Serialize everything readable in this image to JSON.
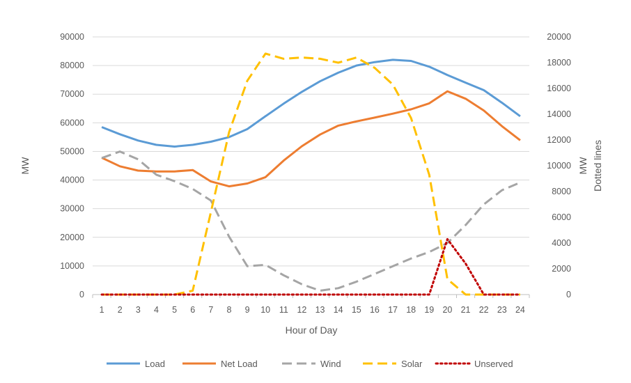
{
  "chart_data": {
    "type": "line",
    "xlabel": "Hour of Day",
    "ylabel_left": "MW",
    "ylabel_right_line1": "MW",
    "ylabel_right_line2": "Dotted lines",
    "x": [
      "1",
      "2",
      "3",
      "4",
      "5",
      "6",
      "7",
      "8",
      "9",
      "10",
      "11",
      "12",
      "13",
      "14",
      "15",
      "16",
      "17",
      "18",
      "19",
      "20",
      "21",
      "22",
      "23",
      "24"
    ],
    "y_left_lim": [
      0,
      90000
    ],
    "y_left_ticks": [
      "0",
      "10000",
      "20000",
      "30000",
      "40000",
      "50000",
      "60000",
      "70000",
      "80000",
      "90000"
    ],
    "y_right_lim": [
      0,
      20000
    ],
    "y_right_ticks": [
      "0",
      "2000",
      "4000",
      "6000",
      "8000",
      "10000",
      "12000",
      "14000",
      "16000",
      "18000",
      "20000"
    ],
    "grid": true,
    "legend_position": "bottom",
    "series": [
      {
        "name": "Load",
        "axis": "left",
        "style": "solid",
        "color": "#5B9BD5",
        "values": [
          58500,
          56000,
          53800,
          52300,
          51700,
          52300,
          53400,
          55000,
          57800,
          62300,
          66700,
          70800,
          74500,
          77500,
          80000,
          81200,
          82000,
          81600,
          79600,
          76700,
          74000,
          71400,
          67000,
          62300
        ]
      },
      {
        "name": "Net Load",
        "axis": "left",
        "style": "solid",
        "color": "#ED7D31",
        "values": [
          47800,
          44800,
          43300,
          43000,
          43000,
          43500,
          39500,
          37800,
          38800,
          41000,
          46800,
          51800,
          55900,
          59000,
          60500,
          61800,
          63200,
          64700,
          66800,
          71000,
          68400,
          64300,
          58800,
          53900
        ]
      },
      {
        "name": "Wind",
        "axis": "right",
        "style": "dashed",
        "color": "#A5A5A5",
        "values": [
          10600,
          11100,
          10500,
          9300,
          8800,
          8200,
          7300,
          4500,
          2200,
          2300,
          1500,
          800,
          300,
          500,
          1000,
          1600,
          2200,
          2800,
          3300,
          4000,
          5400,
          7000,
          8100,
          8700
        ]
      },
      {
        "name": "Solar",
        "axis": "right",
        "style": "dashed",
        "color": "#FFC000",
        "values": [
          0,
          0,
          0,
          0,
          0,
          300,
          6400,
          12600,
          16600,
          18700,
          18300,
          18400,
          18300,
          18000,
          18400,
          17600,
          16300,
          13700,
          9300,
          1200,
          0,
          0,
          0,
          0
        ]
      },
      {
        "name": "Unserved",
        "axis": "right",
        "style": "dotted",
        "color": "#C00000",
        "values": [
          0,
          0,
          0,
          0,
          0,
          0,
          0,
          0,
          0,
          0,
          0,
          0,
          0,
          0,
          0,
          0,
          0,
          0,
          0,
          4300,
          2400,
          0,
          0,
          0
        ]
      }
    ]
  }
}
